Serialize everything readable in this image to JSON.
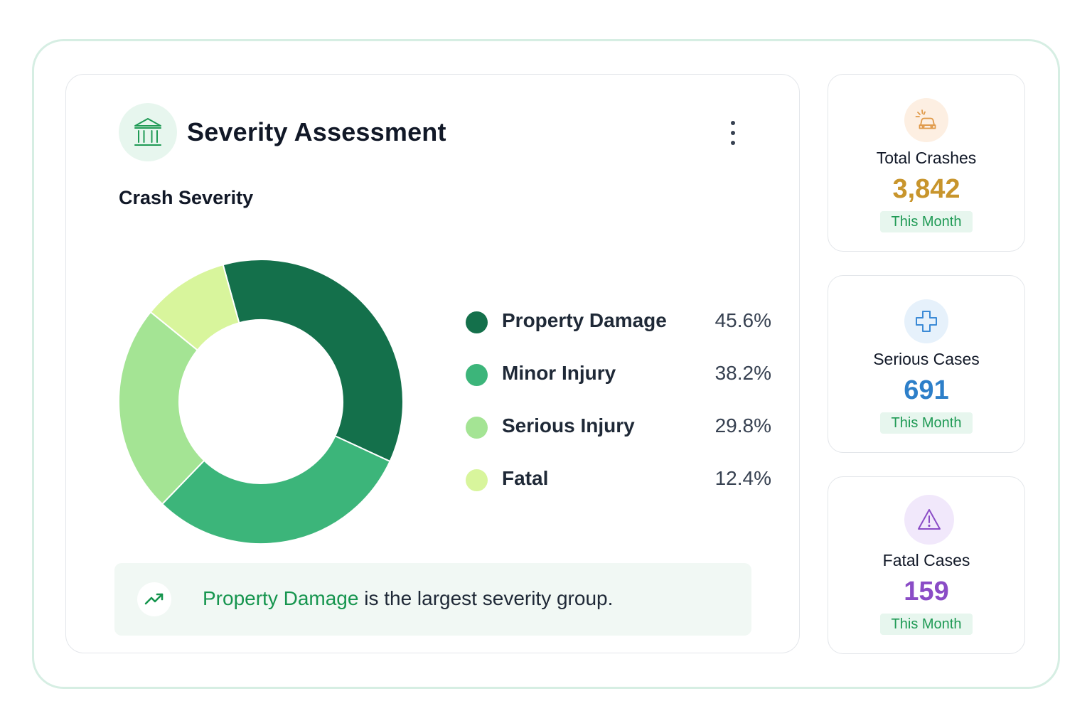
{
  "header": {
    "title": "Severity Assessment",
    "title_icon": "bank-building-icon",
    "menu_icon": "more-vertical-icon"
  },
  "section": {
    "subtitle": "Crash Severity"
  },
  "chart_data": {
    "type": "pie",
    "title": "Crash Severity",
    "categories": [
      "Property Damage",
      "Minor Injury",
      "Serious Injury",
      "Fatal"
    ],
    "values": [
      45.6,
      38.2,
      29.8,
      12.4
    ],
    "value_labels": [
      "45.6%",
      "38.2%",
      "29.8%",
      "12.4%"
    ],
    "colors": [
      "#14704b",
      "#3cb57a",
      "#a4e494",
      "#d8f59c"
    ],
    "legend_position": "right"
  },
  "insight": {
    "icon": "trending-up-icon",
    "highlight": "Property Damage",
    "text": " is the largest severity group."
  },
  "stats": [
    {
      "label": "Total Crashes",
      "value": "3,842",
      "badge": "This Month",
      "icon": "car-crash-icon",
      "color": "#c8952c",
      "icon_bg": "#fdefe2"
    },
    {
      "label": "Serious Cases",
      "value": "691",
      "badge": "This Month",
      "icon": "medical-cross-icon",
      "color": "#2d7fc9",
      "icon_bg": "#e6f1fb"
    },
    {
      "label": "Fatal Cases",
      "value": "159",
      "badge": "This Month",
      "icon": "warning-triangle-icon",
      "color": "#8a4cc6",
      "icon_bg": "#f1e8fb"
    }
  ]
}
